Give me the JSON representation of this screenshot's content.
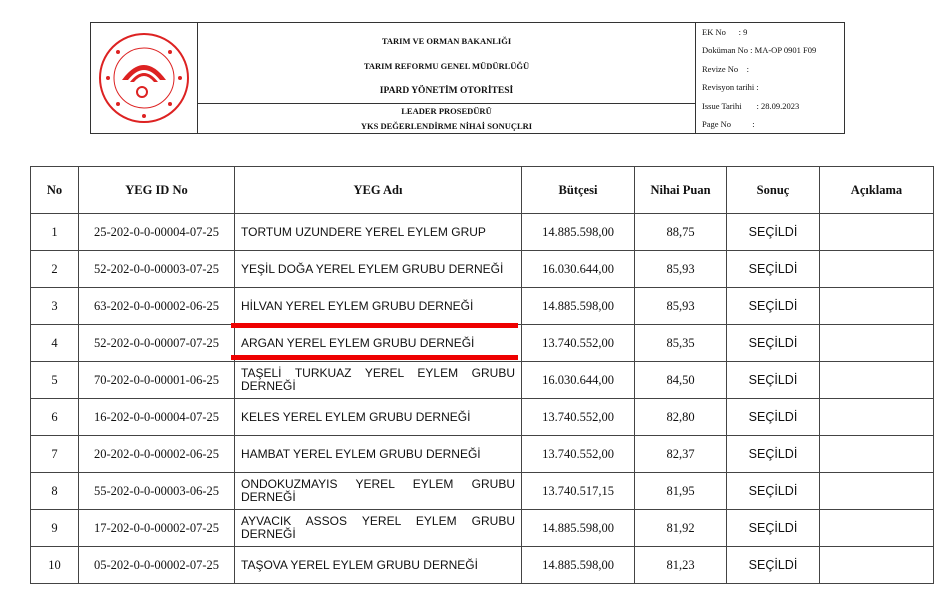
{
  "header": {
    "logo_text": "REPUBLIC OF TÜRKİYE MINISTRY OF AGRICULTURE AND FORESTRY",
    "lines_top": [
      "TARIM VE ORMAN BAKANLIĞI",
      "TARIM REFORMU GENEL MÜDÜRLÜĞÜ",
      "IPARD YÖNETİM OTORİTESİ"
    ],
    "lines_bottom": [
      "LEADER PROSEDÜRÜ",
      "YKS DEĞERLENDİRME NİHAİ SONUÇLRI"
    ],
    "meta": [
      "EK No      : 9",
      "Doküman No : MA-OP 0901 F09",
      "Revize No    :",
      "Revisyon tarihi :",
      "Issue Tarihi       : 28.09.2023",
      "Page No          :"
    ]
  },
  "table": {
    "columns": [
      "No",
      "YEG ID No",
      "YEG Adı",
      "Bütçesi",
      "Nihai Puan",
      "Sonuç",
      "Açıklama"
    ],
    "rows": [
      [
        "1",
        "25-202-0-0-00004-07-25",
        "TORTUM UZUNDERE YEREL EYLEM GRUP",
        "14.885.598,00",
        "88,75",
        "SEÇİLDİ",
        ""
      ],
      [
        "2",
        "52-202-0-0-00003-07-25",
        "YEŞİL DOĞA YEREL EYLEM GRUBU DERNEĞİ",
        "16.030.644,00",
        "85,93",
        "SEÇİLDİ",
        ""
      ],
      [
        "3",
        "63-202-0-0-00002-06-25",
        "HİLVAN YEREL EYLEM GRUBU DERNEĞİ",
        "14.885.598,00",
        "85,93",
        "SEÇİLDİ",
        ""
      ],
      [
        "4",
        "52-202-0-0-00007-07-25",
        "ARGAN YEREL EYLEM GRUBU DERNEĞİ",
        "13.740.552,00",
        "85,35",
        "SEÇİLDİ",
        ""
      ],
      [
        "5",
        "70-202-0-0-00001-06-25",
        "TAŞELİ TURKUAZ YEREL EYLEM GRUBU DERNEĞİ",
        "16.030.644,00",
        "84,50",
        "SEÇİLDİ",
        ""
      ],
      [
        "6",
        "16-202-0-0-00004-07-25",
        "KELES YEREL EYLEM GRUBU DERNEĞİ",
        "13.740.552,00",
        "82,80",
        "SEÇİLDİ",
        ""
      ],
      [
        "7",
        "20-202-0-0-00002-06-25",
        "HAMBAT YEREL EYLEM GRUBU DERNEĞİ",
        "13.740.552,00",
        "82,37",
        "SEÇİLDİ",
        ""
      ],
      [
        "8",
        "55-202-0-0-00003-06-25",
        "ONDOKUZMAYIS YEREL EYLEM GRUBU DERNEĞİ",
        "13.740.517,15",
        "81,95",
        "SEÇİLDİ",
        ""
      ],
      [
        "9",
        "17-202-0-0-00002-07-25",
        "AYVACIK ASSOS YEREL EYLEM GRUBU DERNEĞİ",
        "14.885.598,00",
        "81,92",
        "SEÇİLDİ",
        ""
      ],
      [
        "10",
        "05-202-0-0-00002-07-25",
        "TAŞOVA YEREL EYLEM GRUBU DERNEĞİ",
        "14.885.598,00",
        "81,23",
        "SEÇİLDİ",
        ""
      ]
    ]
  },
  "highlight_color": "#e00000"
}
